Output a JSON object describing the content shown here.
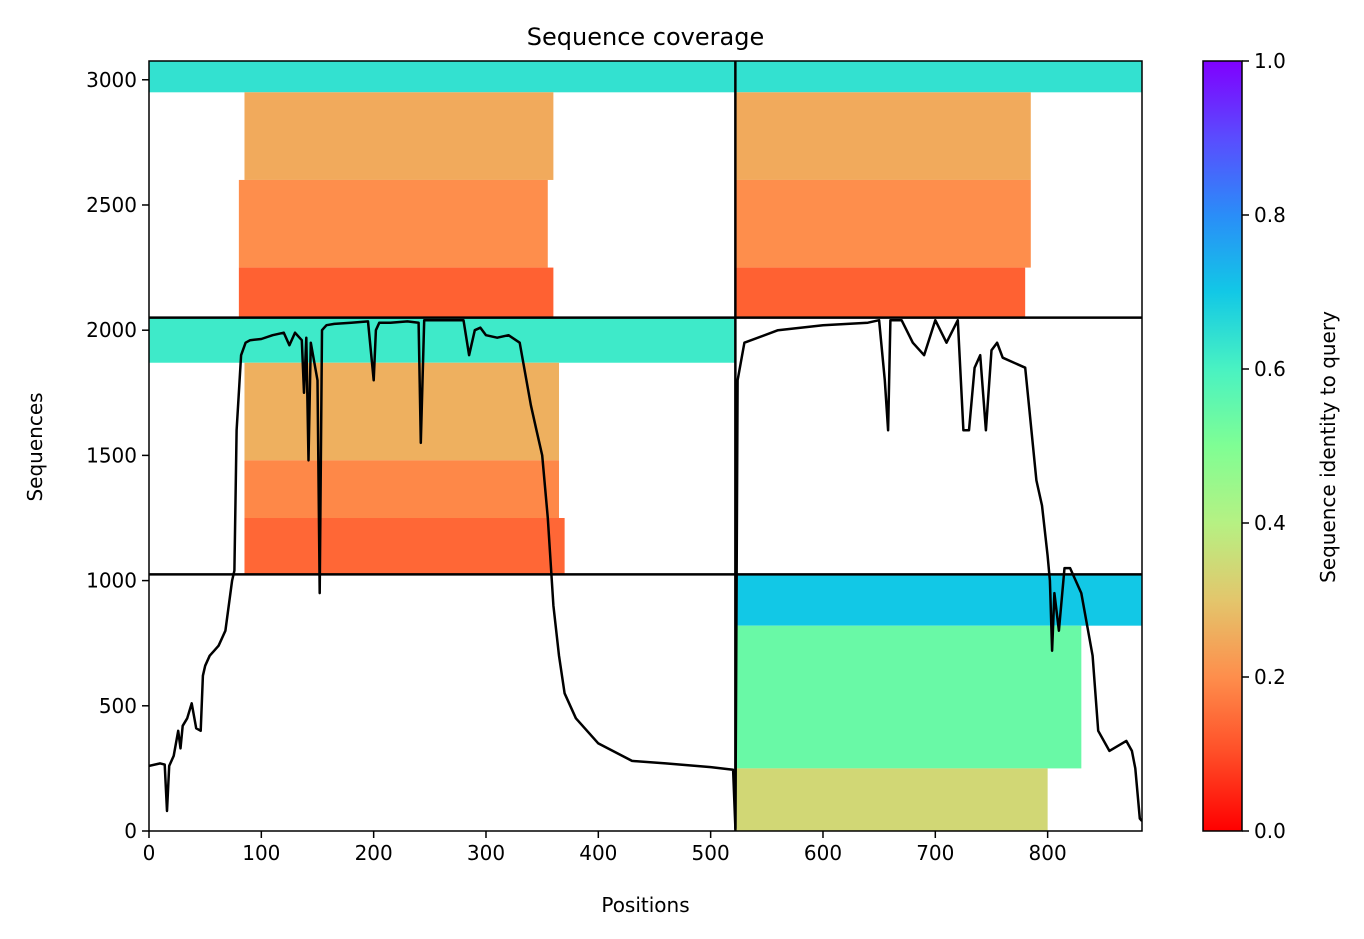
{
  "chart_data": {
    "type": "heatmap",
    "title": "Sequence coverage",
    "xlabel": "Positions",
    "ylabel": "Sequences",
    "colorbar_label": "Sequence identity to query",
    "colormap": "rainbow",
    "xlim": [
      0,
      884
    ],
    "ylim": [
      0,
      3075
    ],
    "x_ticks": [
      0,
      100,
      200,
      300,
      400,
      500,
      600,
      700,
      800
    ],
    "y_ticks": [
      0,
      500,
      1000,
      1500,
      2000,
      2500,
      3000
    ],
    "colorbar_ticks": [
      0.0,
      0.2,
      0.4,
      0.6,
      0.8,
      1.0
    ],
    "colorbar_range": [
      0.0,
      1.0
    ],
    "grid": false,
    "chain_boundaries_x": [
      522
    ],
    "chain_boundaries_y": [
      1025,
      2050
    ],
    "coverage_blocks": [
      {
        "x_range": [
          0,
          522
        ],
        "y_range": [
          2050,
          3075
        ],
        "bands": [
          {
            "y": [
              2950,
              3075
            ],
            "x_min": 0,
            "x_max": 522,
            "identity": 0.64
          },
          {
            "y": [
              2600,
              2950
            ],
            "x_min": 85,
            "x_max": 360,
            "identity": 0.25
          },
          {
            "y": [
              2250,
              2600
            ],
            "x_min": 80,
            "x_max": 355,
            "identity": 0.2
          },
          {
            "y": [
              2050,
              2250
            ],
            "x_min": 80,
            "x_max": 360,
            "identity": 0.13
          }
        ]
      },
      {
        "x_range": [
          522,
          884
        ],
        "y_range": [
          2050,
          3075
        ],
        "bands": [
          {
            "y": [
              2950,
              3075
            ],
            "x_min": 522,
            "x_max": 884,
            "identity": 0.64
          },
          {
            "y": [
              2600,
              2950
            ],
            "x_min": 522,
            "x_max": 785,
            "identity": 0.25
          },
          {
            "y": [
              2250,
              2600
            ],
            "x_min": 522,
            "x_max": 785,
            "identity": 0.2
          },
          {
            "y": [
              2050,
              2250
            ],
            "x_min": 522,
            "x_max": 780,
            "identity": 0.13
          }
        ]
      },
      {
        "x_range": [
          0,
          522
        ],
        "y_range": [
          1025,
          2050
        ],
        "bands": [
          {
            "y": [
              1870,
              2050
            ],
            "x_min": 0,
            "x_max": 522,
            "identity": 0.62
          },
          {
            "y": [
              1480,
              1870
            ],
            "x_min": 85,
            "x_max": 365,
            "identity": 0.26
          },
          {
            "y": [
              1250,
              1480
            ],
            "x_min": 85,
            "x_max": 365,
            "identity": 0.19
          },
          {
            "y": [
              1025,
              1250
            ],
            "x_min": 85,
            "x_max": 370,
            "identity": 0.14
          }
        ]
      },
      {
        "x_range": [
          522,
          884
        ],
        "y_range": [
          0,
          1025
        ],
        "bands": [
          {
            "y": [
              820,
              1025
            ],
            "x_min": 522,
            "x_max": 884,
            "identity": 0.7
          },
          {
            "y": [
              250,
              820
            ],
            "x_min": 522,
            "x_max": 830,
            "identity": 0.54
          },
          {
            "y": [
              0,
              250
            ],
            "x_min": 522,
            "x_max": 800,
            "identity": 0.34
          }
        ]
      }
    ],
    "coverage_line": {
      "color": "#000000",
      "x": [
        0,
        10,
        14,
        16,
        18,
        22,
        26,
        28,
        30,
        34,
        38,
        42,
        46,
        48,
        50,
        54,
        58,
        62,
        68,
        74,
        76,
        78,
        82,
        86,
        90,
        100,
        110,
        120,
        125,
        130,
        136,
        138,
        140,
        142,
        144,
        150,
        152,
        154,
        156,
        158,
        165,
        180,
        195,
        200,
        202,
        205,
        215,
        230,
        240,
        242,
        245,
        260,
        280,
        285,
        290,
        295,
        300,
        310,
        320,
        330,
        340,
        345,
        350,
        355,
        360,
        365,
        370,
        380,
        400,
        430,
        460,
        500,
        520,
        522,
        524,
        530,
        560,
        600,
        640,
        650,
        655,
        658,
        660,
        670,
        680,
        690,
        700,
        710,
        720,
        725,
        730,
        735,
        740,
        745,
        750,
        755,
        760,
        780,
        790,
        795,
        800,
        802,
        804,
        806,
        810,
        815,
        820,
        830,
        840,
        845,
        855,
        870,
        875,
        878,
        882,
        884
      ],
      "y": [
        260,
        270,
        265,
        80,
        260,
        300,
        400,
        330,
        420,
        450,
        510,
        410,
        400,
        620,
        660,
        700,
        720,
        740,
        800,
        1000,
        1040,
        1600,
        1900,
        1950,
        1960,
        1965,
        1980,
        1990,
        1940,
        1990,
        1960,
        1750,
        1970,
        1480,
        1950,
        1800,
        950,
        2000,
        2010,
        2020,
        2025,
        2030,
        2035,
        1800,
        2000,
        2030,
        2030,
        2035,
        2030,
        1550,
        2040,
        2040,
        2040,
        1900,
        2000,
        2010,
        1980,
        1970,
        1980,
        1950,
        1700,
        1600,
        1500,
        1250,
        900,
        700,
        550,
        450,
        350,
        280,
        270,
        255,
        245,
        10,
        1800,
        1950,
        2000,
        2020,
        2030,
        2040,
        1800,
        1600,
        2040,
        2040,
        1950,
        1900,
        2040,
        1950,
        2040,
        1600,
        1600,
        1850,
        1900,
        1600,
        1920,
        1950,
        1890,
        1850,
        1400,
        1300,
        1100,
        1000,
        720,
        950,
        800,
        1050,
        1050,
        950,
        700,
        400,
        320,
        360,
        320,
        250,
        50,
        40
      ]
    }
  }
}
